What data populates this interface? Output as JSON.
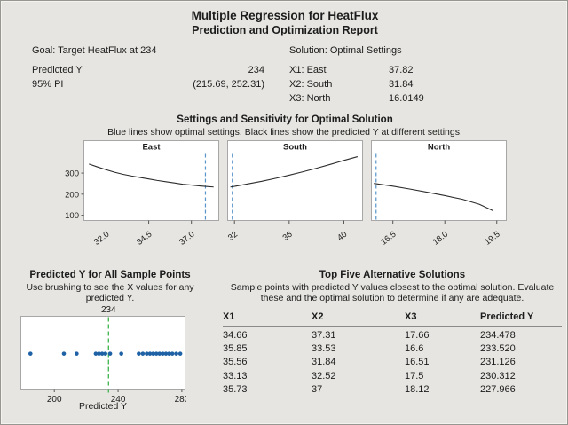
{
  "report": {
    "title": "Multiple Regression for HeatFlux",
    "subtitle": "Prediction and Optimization Report"
  },
  "goal": {
    "header": "Goal: Target HeatFlux at 234",
    "rows": [
      {
        "label": "Predicted Y",
        "value": "234"
      },
      {
        "label": "95% PI",
        "value": "(215.69, 252.31)"
      }
    ]
  },
  "solution": {
    "header": "Solution: Optimal Settings",
    "rows": [
      {
        "label": "X1: East",
        "value": "37.82"
      },
      {
        "label": "X2: South",
        "value": "31.84"
      },
      {
        "label": "X3: North",
        "value": "16.0149"
      }
    ]
  },
  "sensitivity": {
    "title": "Settings and Sensitivity for Optimal Solution",
    "subtitle": "Blue lines show optimal settings. Black lines show the predicted Y at different settings."
  },
  "sample_points": {
    "title": "Predicted Y for All Sample Points",
    "subtitle": "Use brushing to see the X values for any predicted Y.",
    "optimal_label": "234",
    "xlabel": "Predicted Y"
  },
  "alternatives": {
    "title": "Top Five Alternative Solutions",
    "subtitle": "Sample points with predicted Y values closest to the optimal solution. Evaluate these and the optimal solution to determine if any are adequate.",
    "columns": [
      "X1",
      "X2",
      "X3",
      "Predicted Y"
    ],
    "rows": [
      [
        "34.66",
        "37.31",
        "17.66",
        "234.478"
      ],
      [
        "35.85",
        "33.53",
        "16.6",
        "233.520"
      ],
      [
        "35.56",
        "31.84",
        "16.51",
        "231.126"
      ],
      [
        "33.13",
        "32.52",
        "17.5",
        "230.312"
      ],
      [
        "35.73",
        "37",
        "18.12",
        "227.966"
      ]
    ]
  },
  "colors": {
    "background": "#e6e5e1",
    "panel_border": "#a7a7a7",
    "rule": "#8a8a8a",
    "curve": "#2b2b2b",
    "optimal_blue": "#5694c9",
    "optimal_green": "#3cb44b",
    "dot_blue": "#1e61a4",
    "text": "#1c1c1c"
  },
  "chart_data": [
    {
      "type": "line",
      "title": "East",
      "x": [
        31.0,
        31.5,
        32.0,
        32.5,
        33.0,
        33.5,
        34.0,
        34.5,
        35.0,
        35.5,
        36.0,
        36.5,
        37.0,
        37.5,
        37.82,
        38.3
      ],
      "y": [
        343,
        329,
        316,
        304,
        294,
        286,
        279,
        272,
        265,
        259,
        253,
        247,
        243,
        239,
        237,
        234
      ],
      "xlim": [
        30.7,
        38.55
      ],
      "ylim": [
        75,
        395
      ],
      "xticks": [
        32.0,
        34.5,
        37.0
      ],
      "xtick_labels": [
        "32.0",
        "34.5",
        "37.0"
      ],
      "yticks": [
        100,
        200,
        300
      ],
      "ytick_labels": [
        "100",
        "200",
        "300"
      ],
      "show_yticks": true,
      "optimal_x": 37.82
    },
    {
      "type": "line",
      "title": "South",
      "x": [
        31.7,
        32.0,
        33.0,
        34.0,
        35.0,
        36.0,
        37.0,
        38.0,
        39.0,
        40.0,
        41.0
      ],
      "y": [
        234,
        237,
        249,
        261,
        275,
        290,
        306,
        323,
        341,
        360,
        378
      ],
      "xlim": [
        31.5,
        41.3
      ],
      "ylim": [
        75,
        395
      ],
      "xticks": [
        32,
        36,
        40
      ],
      "xtick_labels": [
        "32",
        "36",
        "40"
      ],
      "yticks": [],
      "ytick_labels": [],
      "show_yticks": false,
      "optimal_x": 31.84
    },
    {
      "type": "line",
      "title": "North",
      "x": [
        15.95,
        16.5,
        17.0,
        17.5,
        18.0,
        18.5,
        19.0,
        19.4
      ],
      "y": [
        251,
        238,
        224,
        209,
        193,
        176,
        152,
        121
      ],
      "xlim": [
        15.88,
        19.75
      ],
      "ylim": [
        75,
        395
      ],
      "xticks": [
        16.5,
        18.0,
        19.5
      ],
      "xtick_labels": [
        "16.5",
        "18.0",
        "19.5"
      ],
      "yticks": [],
      "ytick_labels": [],
      "show_yticks": false,
      "optimal_x": 16.0149
    },
    {
      "type": "dotplot",
      "title": "Predicted Y for All Sample Points",
      "values": [
        185,
        206,
        214,
        226,
        228,
        230,
        232,
        235,
        242,
        253,
        255.5,
        258,
        260,
        262,
        264,
        266,
        268,
        270,
        272,
        274,
        276.5,
        279
      ],
      "xlim": [
        179,
        282
      ],
      "xticks": [
        200,
        240,
        280
      ],
      "xtick_labels": [
        "200",
        "240",
        "280"
      ],
      "optimal_x": 234,
      "xlabel": "Predicted Y"
    }
  ]
}
